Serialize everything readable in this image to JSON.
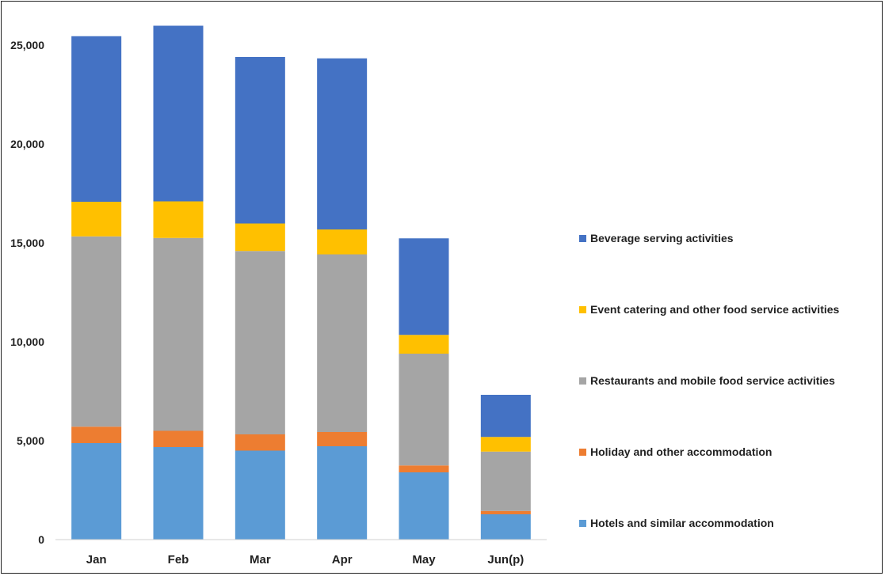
{
  "chart_data": {
    "type": "bar",
    "stacked": true,
    "categories": [
      "Jan",
      "Feb",
      "Mar",
      "Apr",
      "May",
      "Jun(p)"
    ],
    "ylim": [
      0,
      26000
    ],
    "yticks": [
      0,
      5000,
      10000,
      15000,
      20000,
      25000
    ],
    "ytick_labels": [
      "0",
      "5,000",
      "10,000",
      "15,000",
      "20,000",
      "25,000"
    ],
    "legend_position": "right",
    "grid": false,
    "series": [
      {
        "name": "Hotels and similar accommodation",
        "color": "#5b9bd5",
        "values": [
          4880,
          4680,
          4500,
          4720,
          3400,
          1280
        ]
      },
      {
        "name": "Holiday and other accommodation",
        "color": "#ed7d31",
        "values": [
          830,
          820,
          820,
          720,
          350,
          170
        ]
      },
      {
        "name": "Restaurants and mobile food service activities",
        "color": "#a5a5a5",
        "values": [
          9620,
          9750,
          9270,
          8980,
          5650,
          3000
        ]
      },
      {
        "name": "Event catering and other food service activities",
        "color": "#ffc000",
        "values": [
          1750,
          1850,
          1390,
          1260,
          950,
          740
        ]
      },
      {
        "name": "Beverage serving activities",
        "color": "#4472c4",
        "values": [
          8370,
          8880,
          8420,
          8650,
          4880,
          2130
        ]
      }
    ]
  }
}
